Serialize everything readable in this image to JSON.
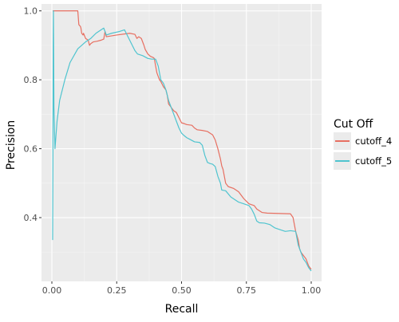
{
  "chart_data": {
    "type": "line",
    "xlabel": "Recall",
    "ylabel": "Precision",
    "xlim": [
      -0.04,
      1.04
    ],
    "ylim": [
      0.215,
      1.02
    ],
    "x_ticks": [
      0.0,
      0.25,
      0.5,
      0.75,
      1.0
    ],
    "x_tick_labels": [
      "0.00",
      "0.25",
      "0.50",
      "0.75",
      "1.00"
    ],
    "y_ticks": [
      0.4,
      0.6,
      0.8,
      1.0
    ],
    "y_tick_labels": [
      "0.4",
      "0.6",
      "0.8",
      "1.0"
    ],
    "grid": true,
    "legend": {
      "title": "Cut Off",
      "position": "right"
    },
    "series": [
      {
        "name": "cutoff_4",
        "color": "#E76F61",
        "points": [
          [
            0.003,
            1.0
          ],
          [
            0.1,
            1.0
          ],
          [
            0.104,
            0.96
          ],
          [
            0.11,
            0.955
          ],
          [
            0.112,
            0.95
          ],
          [
            0.115,
            0.935
          ],
          [
            0.12,
            0.93
          ],
          [
            0.122,
            0.935
          ],
          [
            0.13,
            0.92
          ],
          [
            0.14,
            0.915
          ],
          [
            0.145,
            0.9
          ],
          [
            0.15,
            0.905
          ],
          [
            0.16,
            0.91
          ],
          [
            0.175,
            0.912
          ],
          [
            0.19,
            0.915
          ],
          [
            0.2,
            0.918
          ],
          [
            0.205,
            0.94
          ],
          [
            0.21,
            0.925
          ],
          [
            0.25,
            0.93
          ],
          [
            0.3,
            0.935
          ],
          [
            0.32,
            0.932
          ],
          [
            0.328,
            0.92
          ],
          [
            0.335,
            0.925
          ],
          [
            0.345,
            0.92
          ],
          [
            0.355,
            0.9
          ],
          [
            0.36,
            0.888
          ],
          [
            0.37,
            0.875
          ],
          [
            0.38,
            0.868
          ],
          [
            0.39,
            0.865
          ],
          [
            0.395,
            0.862
          ],
          [
            0.4,
            0.84
          ],
          [
            0.405,
            0.82
          ],
          [
            0.41,
            0.81
          ],
          [
            0.415,
            0.8
          ],
          [
            0.42,
            0.795
          ],
          [
            0.43,
            0.78
          ],
          [
            0.44,
            0.77
          ],
          [
            0.445,
            0.755
          ],
          [
            0.45,
            0.73
          ],
          [
            0.46,
            0.72
          ],
          [
            0.47,
            0.71
          ],
          [
            0.48,
            0.705
          ],
          [
            0.49,
            0.69
          ],
          [
            0.5,
            0.675
          ],
          [
            0.51,
            0.673
          ],
          [
            0.52,
            0.67
          ],
          [
            0.54,
            0.668
          ],
          [
            0.55,
            0.66
          ],
          [
            0.56,
            0.655
          ],
          [
            0.58,
            0.653
          ],
          [
            0.6,
            0.65
          ],
          [
            0.61,
            0.645
          ],
          [
            0.62,
            0.64
          ],
          [
            0.63,
            0.625
          ],
          [
            0.64,
            0.6
          ],
          [
            0.65,
            0.57
          ],
          [
            0.655,
            0.55
          ],
          [
            0.66,
            0.54
          ],
          [
            0.67,
            0.5
          ],
          [
            0.68,
            0.49
          ],
          [
            0.7,
            0.485
          ],
          [
            0.72,
            0.475
          ],
          [
            0.74,
            0.455
          ],
          [
            0.76,
            0.44
          ],
          [
            0.78,
            0.435
          ],
          [
            0.79,
            0.425
          ],
          [
            0.8,
            0.42
          ],
          [
            0.81,
            0.415
          ],
          [
            0.83,
            0.413
          ],
          [
            0.88,
            0.412
          ],
          [
            0.92,
            0.411
          ],
          [
            0.93,
            0.4
          ],
          [
            0.935,
            0.38
          ],
          [
            0.94,
            0.36
          ],
          [
            0.95,
            0.335
          ],
          [
            0.955,
            0.31
          ],
          [
            0.96,
            0.3
          ],
          [
            0.97,
            0.29
          ],
          [
            0.975,
            0.285
          ],
          [
            0.98,
            0.28
          ],
          [
            0.985,
            0.27
          ],
          [
            0.99,
            0.26
          ],
          [
            0.995,
            0.255
          ],
          [
            1.0,
            0.25
          ]
        ]
      },
      {
        "name": "cutoff_5",
        "color": "#4FC4CF",
        "points": [
          [
            0.003,
            0.335
          ],
          [
            0.004,
            0.55
          ],
          [
            0.005,
            0.9
          ],
          [
            0.006,
            1.0
          ],
          [
            0.008,
            0.72
          ],
          [
            0.012,
            0.6
          ],
          [
            0.02,
            0.68
          ],
          [
            0.03,
            0.74
          ],
          [
            0.05,
            0.8
          ],
          [
            0.07,
            0.85
          ],
          [
            0.1,
            0.89
          ],
          [
            0.13,
            0.91
          ],
          [
            0.15,
            0.92
          ],
          [
            0.17,
            0.935
          ],
          [
            0.19,
            0.945
          ],
          [
            0.2,
            0.95
          ],
          [
            0.21,
            0.93
          ],
          [
            0.23,
            0.935
          ],
          [
            0.26,
            0.94
          ],
          [
            0.28,
            0.945
          ],
          [
            0.29,
            0.93
          ],
          [
            0.3,
            0.915
          ],
          [
            0.31,
            0.9
          ],
          [
            0.32,
            0.885
          ],
          [
            0.33,
            0.875
          ],
          [
            0.35,
            0.87
          ],
          [
            0.37,
            0.862
          ],
          [
            0.385,
            0.86
          ],
          [
            0.4,
            0.86
          ],
          [
            0.41,
            0.84
          ],
          [
            0.42,
            0.8
          ],
          [
            0.43,
            0.79
          ],
          [
            0.44,
            0.77
          ],
          [
            0.45,
            0.74
          ],
          [
            0.46,
            0.72
          ],
          [
            0.47,
            0.7
          ],
          [
            0.48,
            0.68
          ],
          [
            0.49,
            0.66
          ],
          [
            0.5,
            0.645
          ],
          [
            0.51,
            0.638
          ],
          [
            0.52,
            0.632
          ],
          [
            0.53,
            0.628
          ],
          [
            0.55,
            0.62
          ],
          [
            0.57,
            0.618
          ],
          [
            0.58,
            0.61
          ],
          [
            0.59,
            0.58
          ],
          [
            0.6,
            0.56
          ],
          [
            0.61,
            0.557
          ],
          [
            0.62,
            0.555
          ],
          [
            0.63,
            0.548
          ],
          [
            0.64,
            0.52
          ],
          [
            0.65,
            0.5
          ],
          [
            0.655,
            0.48
          ],
          [
            0.67,
            0.478
          ],
          [
            0.69,
            0.46
          ],
          [
            0.72,
            0.445
          ],
          [
            0.74,
            0.44
          ],
          [
            0.76,
            0.435
          ],
          [
            0.77,
            0.425
          ],
          [
            0.78,
            0.41
          ],
          [
            0.79,
            0.39
          ],
          [
            0.8,
            0.385
          ],
          [
            0.82,
            0.384
          ],
          [
            0.84,
            0.38
          ],
          [
            0.86,
            0.37
          ],
          [
            0.88,
            0.365
          ],
          [
            0.9,
            0.36
          ],
          [
            0.92,
            0.362
          ],
          [
            0.94,
            0.36
          ],
          [
            0.945,
            0.34
          ],
          [
            0.95,
            0.32
          ],
          [
            0.96,
            0.3
          ],
          [
            0.97,
            0.28
          ],
          [
            0.98,
            0.27
          ],
          [
            0.99,
            0.255
          ],
          [
            1.0,
            0.245
          ]
        ]
      }
    ]
  }
}
